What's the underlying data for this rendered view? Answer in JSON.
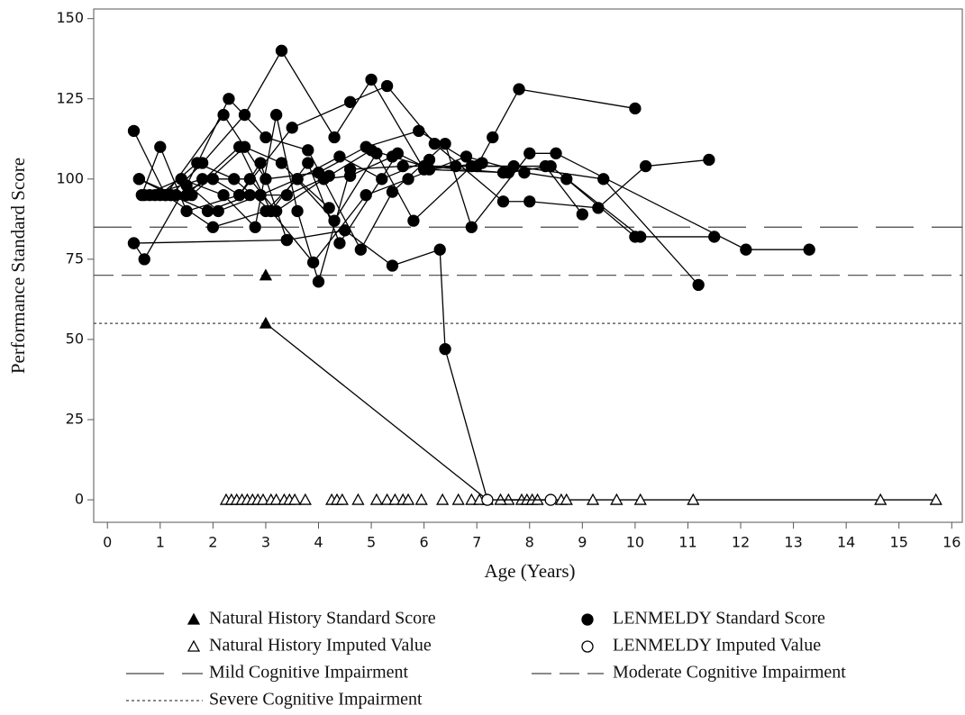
{
  "chart_data": {
    "type": "line",
    "xlabel": "Age (Years)",
    "ylabel": "Performance Standard Score",
    "xlim": [
      -0.26,
      16.2
    ],
    "ylim": [
      -7,
      153
    ],
    "xticks": [
      0,
      1,
      2,
      3,
      4,
      5,
      6,
      7,
      8,
      9,
      10,
      11,
      12,
      13,
      14,
      15,
      16
    ],
    "yticks": [
      0,
      25,
      50,
      75,
      100,
      125,
      150
    ],
    "color": "#000000",
    "reference_lines": [
      {
        "name": "Mild Cognitive Impairment",
        "value": 85,
        "style": "long-dash"
      },
      {
        "name": "Moderate Cognitive Impairment",
        "value": 70,
        "style": "dash"
      },
      {
        "name": "Severe Cognitive Impairment",
        "value": 55,
        "style": "dot"
      }
    ],
    "groups": [
      {
        "standard": "Natural History Standard Score",
        "imputed": "Natural History Imputed Value",
        "marker": "triangle",
        "subjects": [
          {
            "x": [
              3.0
            ],
            "y": [
              70
            ],
            "imputed": [
              false
            ]
          },
          {
            "x": [
              3.0,
              7.2
            ],
            "y": [
              55,
              0
            ],
            "imputed": [
              false,
              true
            ]
          },
          {
            "x": [
              7.6,
              15.7
            ],
            "y": [
              0,
              0
            ],
            "imputed": [
              true,
              true
            ]
          },
          {
            "x": [
              2.25
            ],
            "y": [
              0
            ],
            "imputed": [
              true
            ]
          },
          {
            "x": [
              2.35
            ],
            "y": [
              0
            ],
            "imputed": [
              true
            ]
          },
          {
            "x": [
              2.45
            ],
            "y": [
              0
            ],
            "imputed": [
              true
            ]
          },
          {
            "x": [
              2.55
            ],
            "y": [
              0
            ],
            "imputed": [
              true
            ]
          },
          {
            "x": [
              2.65
            ],
            "y": [
              0
            ],
            "imputed": [
              true
            ]
          },
          {
            "x": [
              2.75
            ],
            "y": [
              0
            ],
            "imputed": [
              true
            ]
          },
          {
            "x": [
              2.85
            ],
            "y": [
              0
            ],
            "imputed": [
              true
            ]
          },
          {
            "x": [
              2.95
            ],
            "y": [
              0
            ],
            "imputed": [
              true
            ]
          },
          {
            "x": [
              3.1
            ],
            "y": [
              0
            ],
            "imputed": [
              true
            ]
          },
          {
            "x": [
              3.2
            ],
            "y": [
              0
            ],
            "imputed": [
              true
            ]
          },
          {
            "x": [
              3.35
            ],
            "y": [
              0
            ],
            "imputed": [
              true
            ]
          },
          {
            "x": [
              3.45
            ],
            "y": [
              0
            ],
            "imputed": [
              true
            ]
          },
          {
            "x": [
              3.55
            ],
            "y": [
              0
            ],
            "imputed": [
              true
            ]
          },
          {
            "x": [
              3.75
            ],
            "y": [
              0
            ],
            "imputed": [
              true
            ]
          },
          {
            "x": [
              4.25
            ],
            "y": [
              0
            ],
            "imputed": [
              true
            ]
          },
          {
            "x": [
              4.35
            ],
            "y": [
              0
            ],
            "imputed": [
              true
            ]
          },
          {
            "x": [
              4.45
            ],
            "y": [
              0
            ],
            "imputed": [
              true
            ]
          },
          {
            "x": [
              4.75
            ],
            "y": [
              0
            ],
            "imputed": [
              true
            ]
          },
          {
            "x": [
              5.1
            ],
            "y": [
              0
            ],
            "imputed": [
              true
            ]
          },
          {
            "x": [
              5.3
            ],
            "y": [
              0
            ],
            "imputed": [
              true
            ]
          },
          {
            "x": [
              5.45
            ],
            "y": [
              0
            ],
            "imputed": [
              true
            ]
          },
          {
            "x": [
              5.6
            ],
            "y": [
              0
            ],
            "imputed": [
              true
            ]
          },
          {
            "x": [
              5.7
            ],
            "y": [
              0
            ],
            "imputed": [
              true
            ]
          },
          {
            "x": [
              5.95
            ],
            "y": [
              0
            ],
            "imputed": [
              true
            ]
          },
          {
            "x": [
              6.35
            ],
            "y": [
              0
            ],
            "imputed": [
              true
            ]
          },
          {
            "x": [
              6.65
            ],
            "y": [
              0
            ],
            "imputed": [
              true
            ]
          },
          {
            "x": [
              6.9
            ],
            "y": [
              0
            ],
            "imputed": [
              true
            ]
          },
          {
            "x": [
              7.05
            ],
            "y": [
              0
            ],
            "imputed": [
              true
            ]
          },
          {
            "x": [
              7.45
            ],
            "y": [
              0
            ],
            "imputed": [
              true
            ]
          },
          {
            "x": [
              7.85
            ],
            "y": [
              0
            ],
            "imputed": [
              true
            ]
          },
          {
            "x": [
              7.95
            ],
            "y": [
              0
            ],
            "imputed": [
              true
            ]
          },
          {
            "x": [
              8.05
            ],
            "y": [
              0
            ],
            "imputed": [
              true
            ]
          },
          {
            "x": [
              8.15
            ],
            "y": [
              0
            ],
            "imputed": [
              true
            ]
          },
          {
            "x": [
              8.6
            ],
            "y": [
              0
            ],
            "imputed": [
              true
            ]
          },
          {
            "x": [
              8.7
            ],
            "y": [
              0
            ],
            "imputed": [
              true
            ]
          },
          {
            "x": [
              9.2
            ],
            "y": [
              0
            ],
            "imputed": [
              true
            ]
          },
          {
            "x": [
              9.65
            ],
            "y": [
              0
            ],
            "imputed": [
              true
            ]
          },
          {
            "x": [
              10.1
            ],
            "y": [
              0
            ],
            "imputed": [
              true
            ]
          },
          {
            "x": [
              11.1
            ],
            "y": [
              0
            ],
            "imputed": [
              true
            ]
          },
          {
            "x": [
              14.65
            ],
            "y": [
              0
            ],
            "imputed": [
              true
            ]
          }
        ]
      },
      {
        "standard": "LENMELDY Standard Score",
        "imputed": "LENMELDY Imputed Value",
        "marker": "circle",
        "subjects": [
          {
            "x": [
              0.5,
              1.1,
              2.2,
              3.0,
              4.0,
              4.9,
              5.9,
              7.0,
              7.3,
              7.8,
              10.0
            ],
            "y": [
              115,
              95,
              120,
              100,
              102,
              110,
              115,
              104,
              113,
              128,
              122
            ],
            "imputed": [
              false,
              false,
              false,
              false,
              false,
              false,
              false,
              false,
              false,
              false,
              false
            ]
          },
          {
            "x": [
              0.6,
              1.2,
              1.8,
              2.6,
              3.3,
              4.3,
              5.0,
              6.0,
              7.6,
              8.4,
              10.1,
              11.5
            ],
            "y": [
              100,
              95,
              105,
              120,
              140,
              113,
              131,
              103,
              102,
              104,
              82,
              82
            ],
            "imputed": [
              false,
              false,
              false,
              false,
              false,
              false,
              false,
              false,
              false,
              false,
              false,
              false
            ]
          },
          {
            "x": [
              0.65,
              1.0,
              1.5,
              2.5,
              3.5,
              4.6,
              5.3,
              6.2,
              7.5,
              8.0,
              9.3,
              10.2,
              11.4
            ],
            "y": [
              95,
              110,
              90,
              95,
              116,
              124,
              129,
              111,
              93,
              93,
              91,
              104,
              106
            ],
            "imputed": [
              false,
              false,
              false,
              false,
              false,
              false,
              false,
              false,
              false,
              false,
              false,
              false,
              false
            ]
          },
          {
            "x": [
              0.5,
              0.7,
              1.5,
              2.3,
              3.0,
              3.8,
              4.8,
              5.4,
              6.4,
              6.9,
              8.0,
              8.5,
              12.1,
              13.3
            ],
            "y": [
              80,
              75,
              98,
              125,
              113,
              109,
              78,
              96,
              111,
              85,
              108,
              108,
              78,
              78
            ],
            "imputed": [
              false,
              false,
              false,
              false,
              false,
              false,
              false,
              false,
              false,
              false,
              false,
              false,
              false,
              false
            ]
          },
          {
            "x": [
              0.6,
              1.3,
              2.0,
              2.5,
              2.9,
              3.4,
              4.5,
              5.4,
              6.3,
              6.4,
              7.2,
              8.4
            ],
            "y": [
              100,
              95,
              100,
              95,
              105,
              81,
              84,
              73,
              78,
              47,
              0,
              0
            ],
            "imputed": [
              false,
              false,
              false,
              false,
              false,
              false,
              false,
              false,
              false,
              false,
              true,
              true
            ]
          },
          {
            "x": [
              0.7,
              1.4,
              2.2,
              2.8,
              3.2,
              3.6,
              4.0,
              4.6,
              5.6,
              6.6,
              7.7,
              9.4,
              11.2
            ],
            "y": [
              95,
              100,
              95,
              85,
              120,
              90,
              68,
              103,
              104,
              104,
              104,
              100,
              67
            ],
            "imputed": [
              false,
              false,
              false,
              false,
              false,
              false,
              false,
              false,
              false,
              false,
              false,
              false,
              false
            ]
          },
          {
            "x": [
              0.9,
              1.6,
              2.6,
              3.3,
              4.3,
              5.1,
              5.8,
              6.9,
              8.3,
              9.0
            ],
            "y": [
              95,
              95,
              110,
              105,
              87,
              108,
              87,
              104,
              104,
              89
            ],
            "imputed": [
              false,
              false,
              false,
              false,
              false,
              false,
              false,
              false,
              false,
              false
            ]
          },
          {
            "x": [
              1.0,
              1.7,
              2.4,
              3.1,
              3.9,
              4.9,
              5.7,
              6.8,
              7.9,
              8.7,
              10.0
            ],
            "y": [
              95,
              105,
              100,
              90,
              74,
              95,
              100,
              107,
              102,
              100,
              82
            ],
            "imputed": [
              false,
              false,
              false,
              false,
              false,
              false,
              false,
              false,
              false,
              false,
              false
            ]
          },
          {
            "x": [
              1.2,
              1.9,
              2.7,
              3.4,
              4.2,
              5.0,
              6.0,
              7.5
            ],
            "y": [
              95,
              90,
              95,
              95,
              101,
              109,
              104,
              102
            ],
            "imputed": [
              false,
              false,
              false,
              false,
              false,
              false,
              false,
              false
            ]
          },
          {
            "x": [
              1.4,
              2.1,
              2.9,
              3.6,
              4.4,
              5.2,
              6.1
            ],
            "y": [
              100,
              90,
              95,
              100,
              107,
              100,
              106
            ],
            "imputed": [
              false,
              false,
              false,
              false,
              false,
              false,
              false
            ]
          },
          {
            "x": [
              0.8,
              1.8,
              2.7,
              3.2,
              4.1,
              4.6,
              5.4
            ],
            "y": [
              95,
              100,
              100,
              90,
              100,
              101,
              107
            ],
            "imputed": [
              false,
              false,
              false,
              false,
              false,
              false,
              false
            ]
          },
          {
            "x": [
              1.1,
              2.0,
              3.0,
              3.6,
              4.2
            ],
            "y": [
              95,
              85,
              90,
              100,
              91
            ],
            "imputed": [
              false,
              false,
              false,
              false,
              false
            ]
          },
          {
            "x": [
              0.5,
              3.4
            ],
            "y": [
              80,
              81
            ],
            "imputed": [
              false,
              false
            ]
          },
          {
            "x": [
              1.5,
              2.5,
              3.1,
              3.8,
              4.4,
              5.5,
              6.1,
              7.1
            ],
            "y": [
              95,
              110,
              90,
              105,
              80,
              108,
              103,
              105
            ],
            "imputed": [
              false,
              false,
              false,
              false,
              false,
              false,
              false,
              false
            ]
          }
        ]
      }
    ]
  }
}
